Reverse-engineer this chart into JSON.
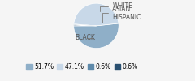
{
  "slices": [
    51.7,
    47.1,
    0.6,
    0.6
  ],
  "labels": [
    "BLACK",
    "WHITE",
    "ASIAN",
    "HISPANIC"
  ],
  "colors": [
    "#8fafc8",
    "#c8d8e8",
    "#5f8aaa",
    "#2a5070"
  ],
  "legend_labels": [
    "51.7%",
    "47.1%",
    "0.6%",
    "0.6%"
  ],
  "startangle": 180,
  "background_color": "#f5f5f5",
  "label_fontsize": 5.5,
  "legend_fontsize": 5.5
}
